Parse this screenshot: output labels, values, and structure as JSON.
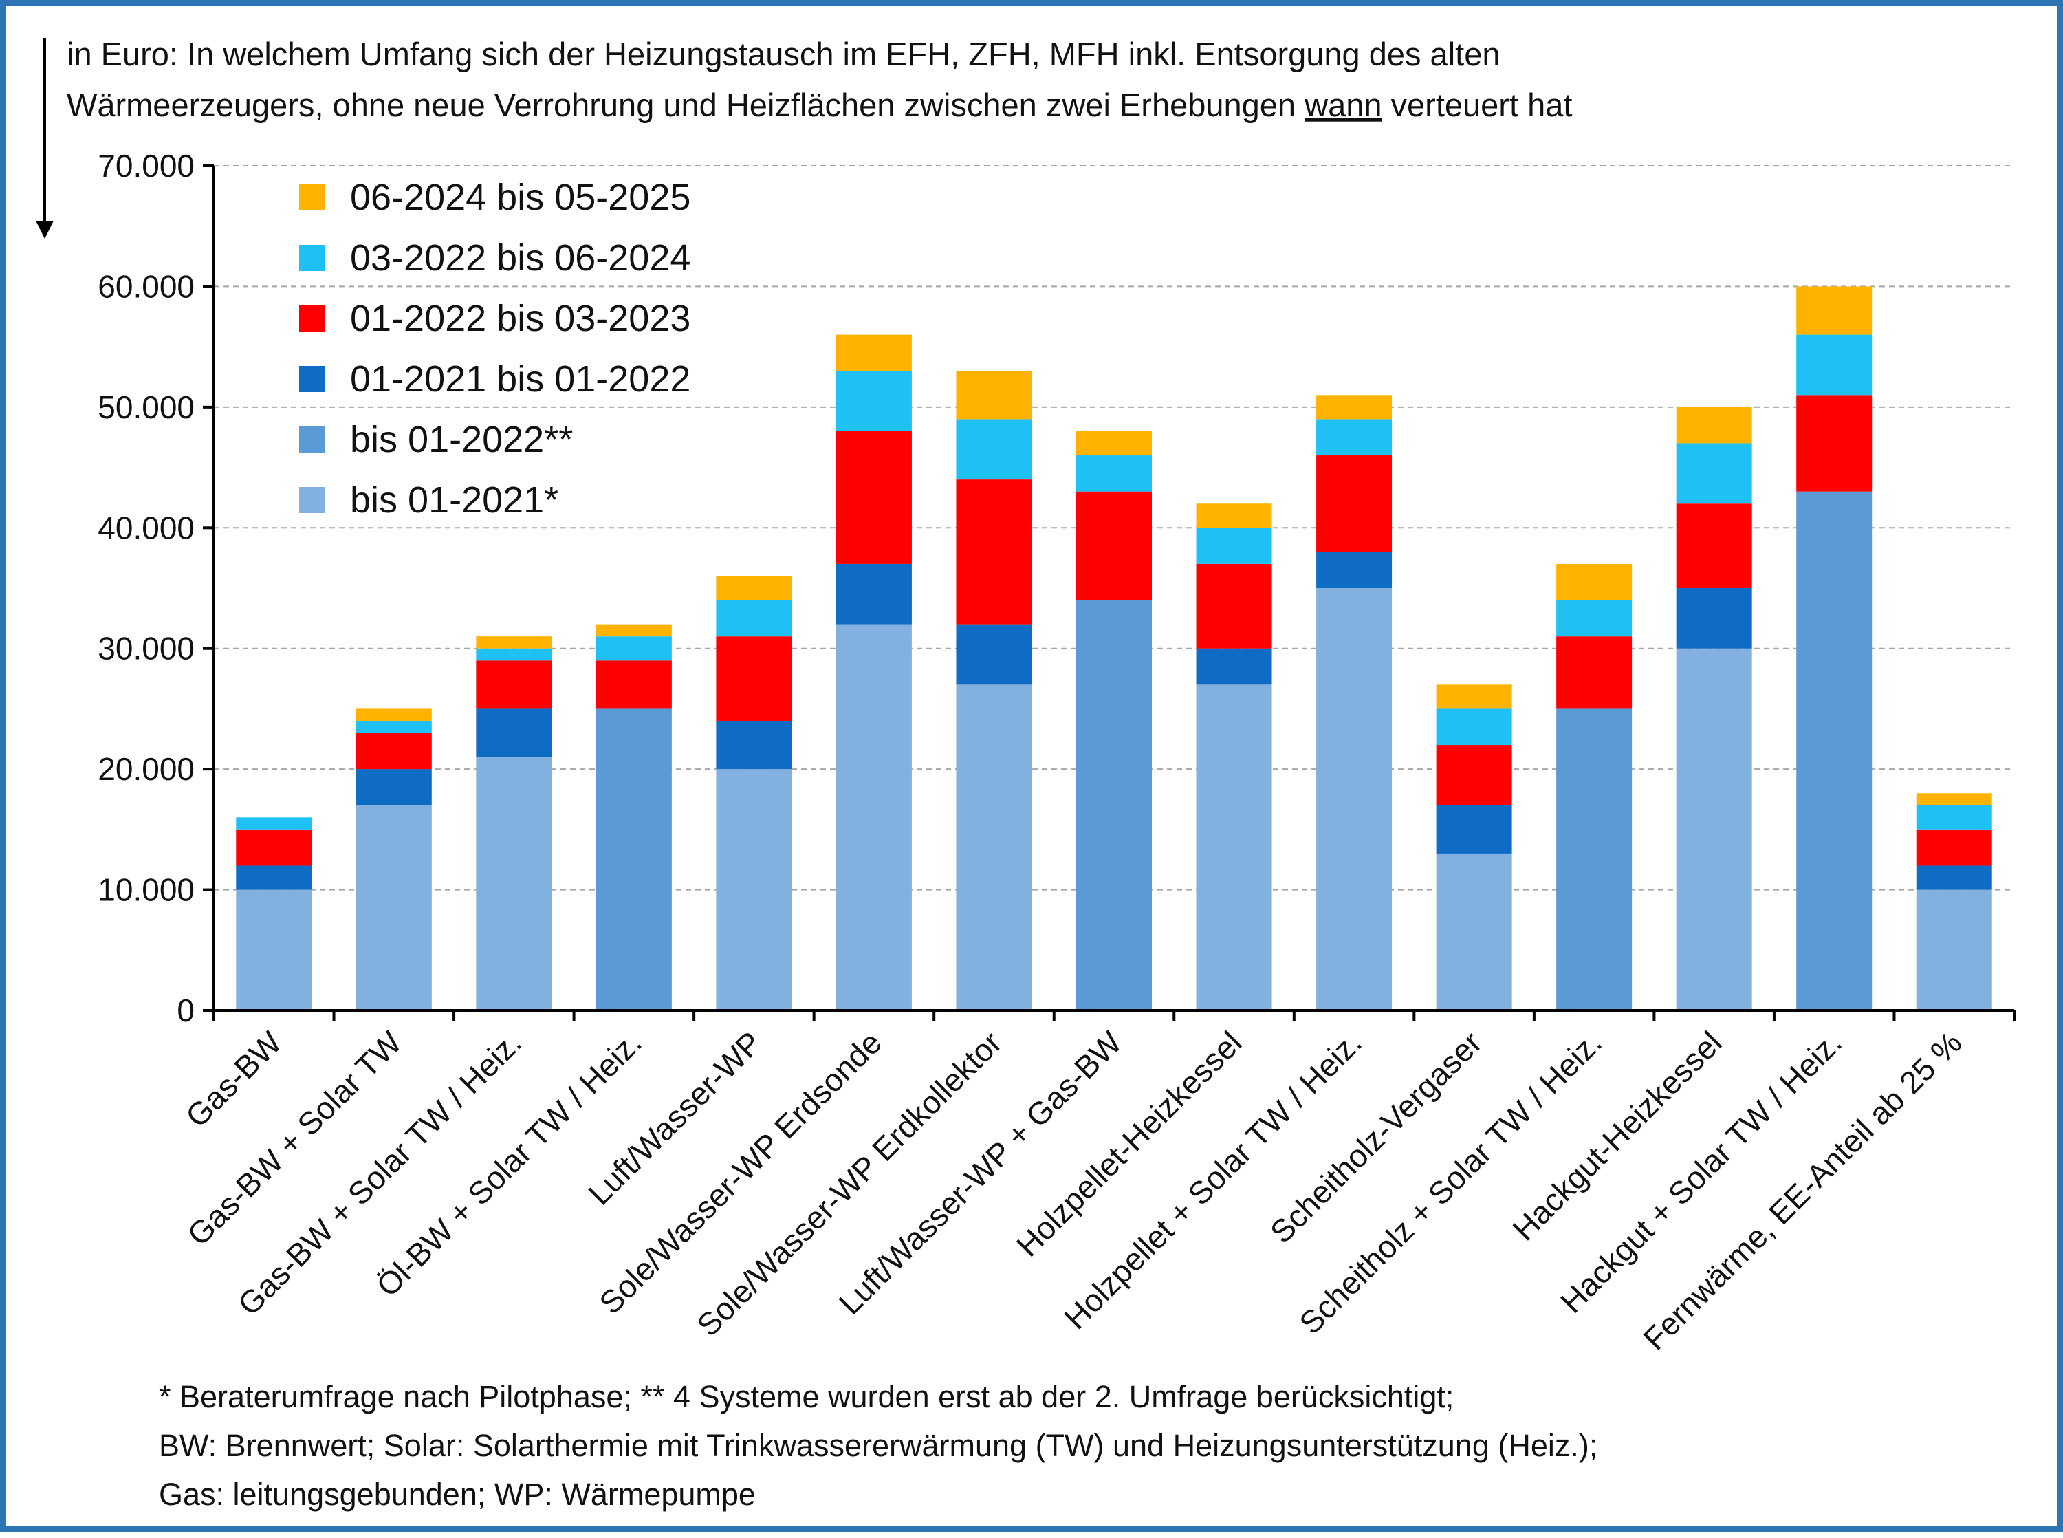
{
  "chart_data": {
    "type": "bar",
    "stacked": true,
    "title_line1": "in Euro: In welchem Umfang sich der Heizungstausch im EFH, ZFH, MFH inkl. Entsorgung des alten",
    "title_line2_part1": "Wärmeerzeugers, ohne neue Verrohrung und Heizflächen zwischen zwei Erhebungen ",
    "title_line2_underlined": "wann",
    "title_line2_part2": " verteuert hat",
    "ylim": [
      0,
      70000
    ],
    "y_ticks": [
      "0",
      "10.000",
      "20.000",
      "30.000",
      "40.000",
      "50.000",
      "60.000",
      "70.000"
    ],
    "grid": "horizontal dashed",
    "legend_position": "top-left",
    "categories": [
      "Gas-BW",
      "Gas-BW + Solar TW",
      "Gas-BW + Solar TW / Heiz.",
      "Öl-BW + Solar TW / Heiz.",
      "Luft/Wasser-WP",
      "Sole/Wasser-WP Erdsonde",
      "Sole/Wasser-WP Erdkollektor",
      "Luft/Wasser-WP + Gas-BW",
      "Holzpellet-Heizkessel",
      "Holzpellet + Solar TW / Heiz.",
      "Scheitholz-Vergaser",
      "Scheitholz + Solar TW / Heiz.",
      "Hackgut-Heizkessel",
      "Hackgut + Solar TW / Heiz.",
      "Fernwärme, EE-Anteil ab 25 %"
    ],
    "series": [
      {
        "name": "bis 01-2021*",
        "color": "#83b1df",
        "values": [
          10000,
          17000,
          21000,
          0,
          20000,
          32000,
          27000,
          0,
          27000,
          35000,
          13000,
          0,
          30000,
          0,
          10000
        ]
      },
      {
        "name": "bis 01-2022**",
        "color": "#5b9bd5",
        "values": [
          0,
          0,
          0,
          25000,
          0,
          0,
          0,
          34000,
          0,
          0,
          0,
          25000,
          0,
          43000,
          0
        ]
      },
      {
        "name": "01-2021 bis 01-2022",
        "color": "#0f6cc4",
        "values": [
          2000,
          3000,
          4000,
          0,
          4000,
          5000,
          5000,
          0,
          3000,
          3000,
          4000,
          0,
          5000,
          0,
          2000
        ]
      },
      {
        "name": "01-2022 bis 03-2023",
        "color": "#ff0000",
        "values": [
          3000,
          3000,
          4000,
          4000,
          7000,
          11000,
          12000,
          9000,
          7000,
          8000,
          5000,
          6000,
          7000,
          8000,
          3000
        ]
      },
      {
        "name": "03-2022 bis 06-2024",
        "color": "#1fc1f5",
        "values": [
          1000,
          1000,
          1000,
          2000,
          3000,
          5000,
          5000,
          3000,
          3000,
          3000,
          3000,
          3000,
          5000,
          5000,
          2000
        ]
      },
      {
        "name": "06-2024 bis 05-2025",
        "color": "#ffb300",
        "values": [
          0,
          1000,
          1000,
          1000,
          2000,
          3000,
          4000,
          2000,
          2000,
          2000,
          2000,
          3000,
          3000,
          4000,
          1000
        ]
      }
    ],
    "legend_order": [
      5,
      4,
      3,
      2,
      1,
      0
    ]
  },
  "footnotes": {
    "line1": "* Beraterumfrage nach Pilotphase; ** 4 Systeme wurden erst ab der 2. Umfrage berücksichtigt;",
    "line2": "BW: Brennwert; Solar: Solarthermie mit Trinkwassererwärmung (TW) und Heizungsunterstützung (Heiz.);",
    "line3": "Gas: leitungsgebunden; WP: Wärmepumpe"
  },
  "icons": {
    "axis_arrow": "down-arrow-icon"
  }
}
